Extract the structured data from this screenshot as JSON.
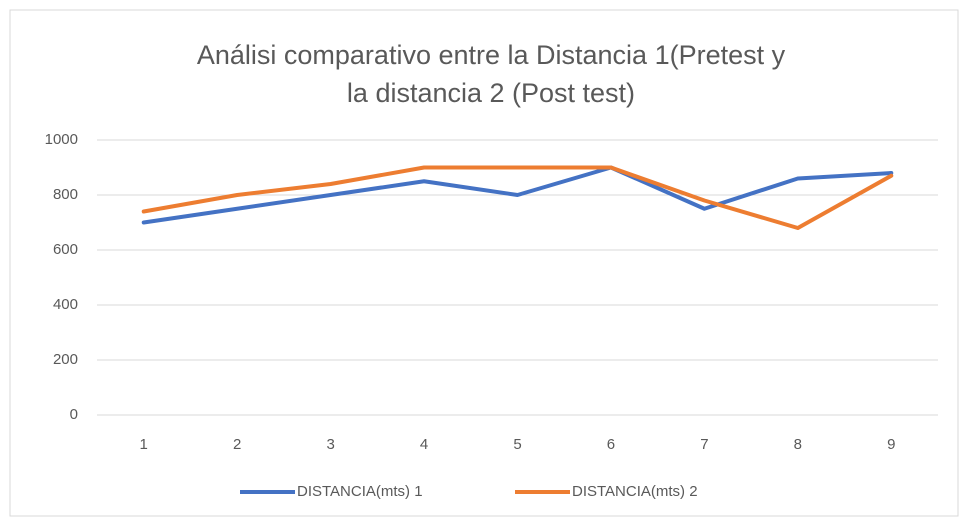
{
  "chart_data": {
    "type": "line",
    "title": [
      "Análisi comparativo entre la Distancia 1(Pretest y",
      "la distancia 2 (Post test)"
    ],
    "categories": [
      "1",
      "2",
      "3",
      "4",
      "5",
      "6",
      "7",
      "8",
      "9"
    ],
    "series": [
      {
        "name": "DISTANCIA(mts) 1",
        "color": "#4472c4",
        "values": [
          700,
          750,
          800,
          850,
          800,
          900,
          750,
          860,
          880
        ]
      },
      {
        "name": "DISTANCIA(mts) 2",
        "color": "#ed7d31",
        "values": [
          740,
          800,
          840,
          900,
          900,
          900,
          780,
          680,
          870
        ]
      }
    ],
    "ylim": [
      0,
      1000
    ],
    "yticks": [
      0,
      200,
      400,
      600,
      800,
      1000
    ],
    "grid": true,
    "legend": "bottom"
  }
}
